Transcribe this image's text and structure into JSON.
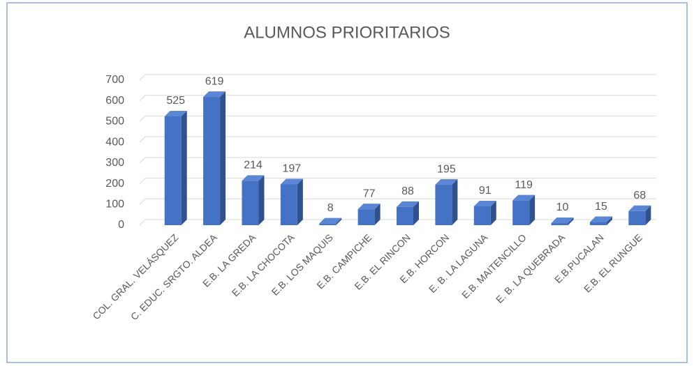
{
  "chart_data": {
    "type": "bar3d",
    "title": "ALUMNOS PRIORITARIOS",
    "categories": [
      "COL. GRAL. VELÁSQUEZ",
      "C. EDUC. SRGTO. ALDEA",
      "E.B. LA GREDA",
      "E.B. LA CHOCOTA",
      "E.B. LOS MAQUIS",
      "E.B. CAMPICHE",
      "E.B.  EL RINCON",
      "E.B.  HORCON",
      "E. B. LA LAGUNA",
      "E.B. MAITENCILLO",
      "E. B. LA QUEBRADA",
      "E.B.PUCALAN",
      "E.B.  EL RUNGUE"
    ],
    "values": [
      525,
      619,
      214,
      197,
      8,
      77,
      88,
      195,
      91,
      119,
      10,
      15,
      68
    ],
    "color": "#4472c4",
    "ylim": [
      0,
      700
    ],
    "yticks": [
      0,
      100,
      200,
      300,
      400,
      500,
      600,
      700
    ],
    "grid": true
  }
}
